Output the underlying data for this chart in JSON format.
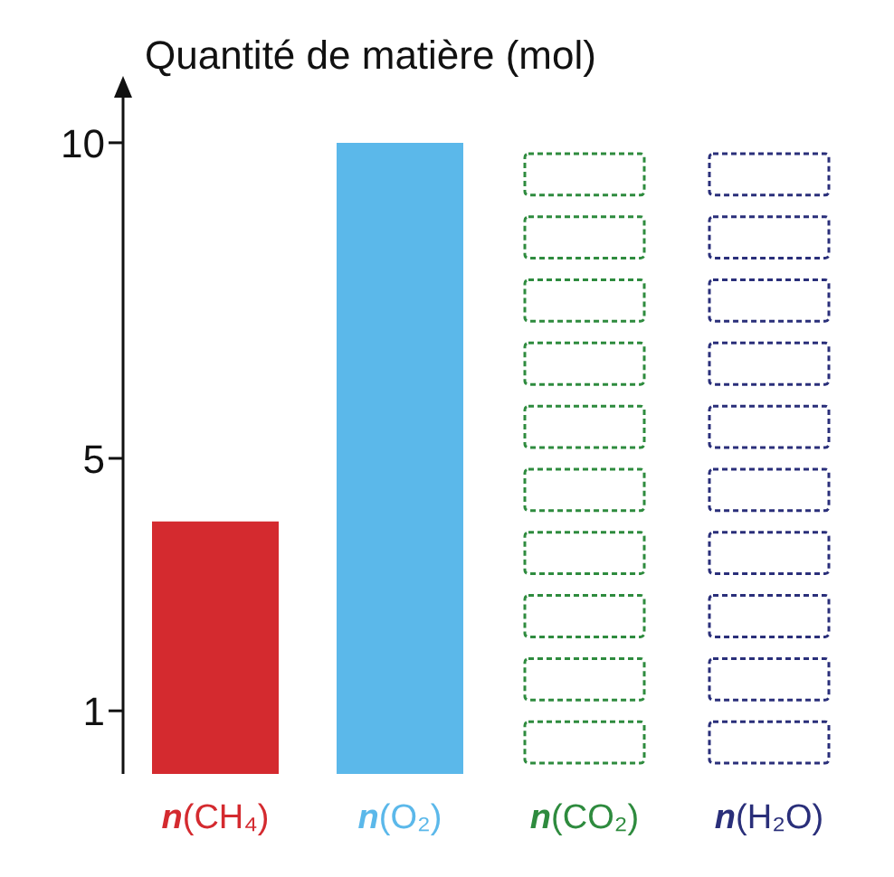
{
  "chart_data": {
    "type": "bar",
    "ylabel": "Quantité de matière (mol)",
    "categories": [
      "n(CH₄)",
      "n(O₂)",
      "n(CO₂)",
      "n(H₂O)"
    ],
    "values": [
      4,
      10,
      null,
      null
    ],
    "colors": [
      "#d42a2f",
      "#5bb8ea",
      "#2e8b3e",
      "#2a2f7a"
    ],
    "ylim": [
      0,
      10.6
    ],
    "yticks": [
      1,
      5,
      10
    ],
    "tick_labels": "xy"
  }
}
